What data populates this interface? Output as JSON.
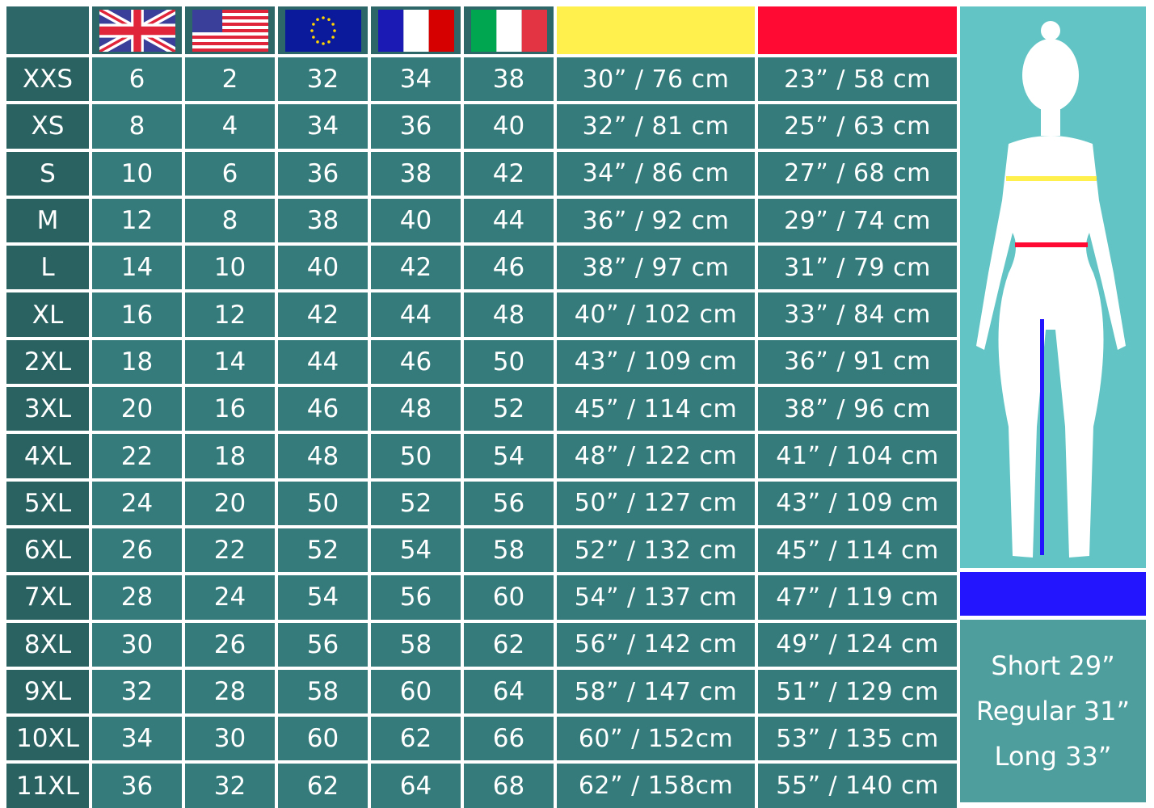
{
  "colors": {
    "chest": "#fff04d",
    "waist": "#ff0a33",
    "inseam": "#2316ff",
    "cell": "#357b7b",
    "size_cell": "#2a6262",
    "figure_panel": "#62c4c4"
  },
  "header": {
    "flags": [
      "uk-flag",
      "us-flag",
      "eu-flag",
      "france-flag",
      "italy-flag"
    ],
    "chest_swatch": "yellow",
    "waist_swatch": "red"
  },
  "rows": [
    {
      "size": "XXS",
      "uk": "6",
      "us": "2",
      "eu": "32",
      "fr": "34",
      "it": "38",
      "chest": "30” / 76 cm",
      "waist": "23” / 58 cm"
    },
    {
      "size": "XS",
      "uk": "8",
      "us": "4",
      "eu": "34",
      "fr": "36",
      "it": "40",
      "chest": "32” / 81 cm",
      "waist": "25” / 63 cm"
    },
    {
      "size": "S",
      "uk": "10",
      "us": "6",
      "eu": "36",
      "fr": "38",
      "it": "42",
      "chest": "34” / 86 cm",
      "waist": "27” / 68 cm"
    },
    {
      "size": "M",
      "uk": "12",
      "us": "8",
      "eu": "38",
      "fr": "40",
      "it": "44",
      "chest": "36” / 92 cm",
      "waist": "29” / 74 cm"
    },
    {
      "size": "L",
      "uk": "14",
      "us": "10",
      "eu": "40",
      "fr": "42",
      "it": "46",
      "chest": "38” / 97 cm",
      "waist": "31” / 79 cm"
    },
    {
      "size": "XL",
      "uk": "16",
      "us": "12",
      "eu": "42",
      "fr": "44",
      "it": "48",
      "chest": "40” / 102 cm",
      "waist": "33” / 84 cm"
    },
    {
      "size": "2XL",
      "uk": "18",
      "us": "14",
      "eu": "44",
      "fr": "46",
      "it": "50",
      "chest": "43” / 109 cm",
      "waist": "36” / 91 cm"
    },
    {
      "size": "3XL",
      "uk": "20",
      "us": "16",
      "eu": "46",
      "fr": "48",
      "it": "52",
      "chest": "45” / 114 cm",
      "waist": "38” / 96 cm"
    },
    {
      "size": "4XL",
      "uk": "22",
      "us": "18",
      "eu": "48",
      "fr": "50",
      "it": "54",
      "chest": "48” / 122 cm",
      "waist": "41” / 104 cm"
    },
    {
      "size": "5XL",
      "uk": "24",
      "us": "20",
      "eu": "50",
      "fr": "52",
      "it": "56",
      "chest": "50” / 127 cm",
      "waist": "43” / 109 cm"
    },
    {
      "size": "6XL",
      "uk": "26",
      "us": "22",
      "eu": "52",
      "fr": "54",
      "it": "58",
      "chest": "52” / 132 cm",
      "waist": "45” / 114 cm"
    },
    {
      "size": "7XL",
      "uk": "28",
      "us": "24",
      "eu": "54",
      "fr": "56",
      "it": "60",
      "chest": "54” / 137 cm",
      "waist": "47” / 119 cm"
    },
    {
      "size": "8XL",
      "uk": "30",
      "us": "26",
      "eu": "56",
      "fr": "58",
      "it": "62",
      "chest": "56” / 142 cm",
      "waist": "49” / 124 cm"
    },
    {
      "size": "9XL",
      "uk": "32",
      "us": "28",
      "eu": "58",
      "fr": "60",
      "it": "64",
      "chest": "58” / 147 cm",
      "waist": "51” / 129 cm"
    },
    {
      "size": "10XL",
      "uk": "34",
      "us": "30",
      "eu": "60",
      "fr": "62",
      "it": "66",
      "chest": "60” / 152cm",
      "waist": "53” / 135 cm"
    },
    {
      "size": "11XL",
      "uk": "36",
      "us": "32",
      "eu": "62",
      "fr": "64",
      "it": "68",
      "chest": "62” / 158cm",
      "waist": "55” / 140 cm"
    }
  ],
  "inseam": {
    "short": "Short 29”",
    "regular": "Regular 31”",
    "long": "Long 33”"
  }
}
